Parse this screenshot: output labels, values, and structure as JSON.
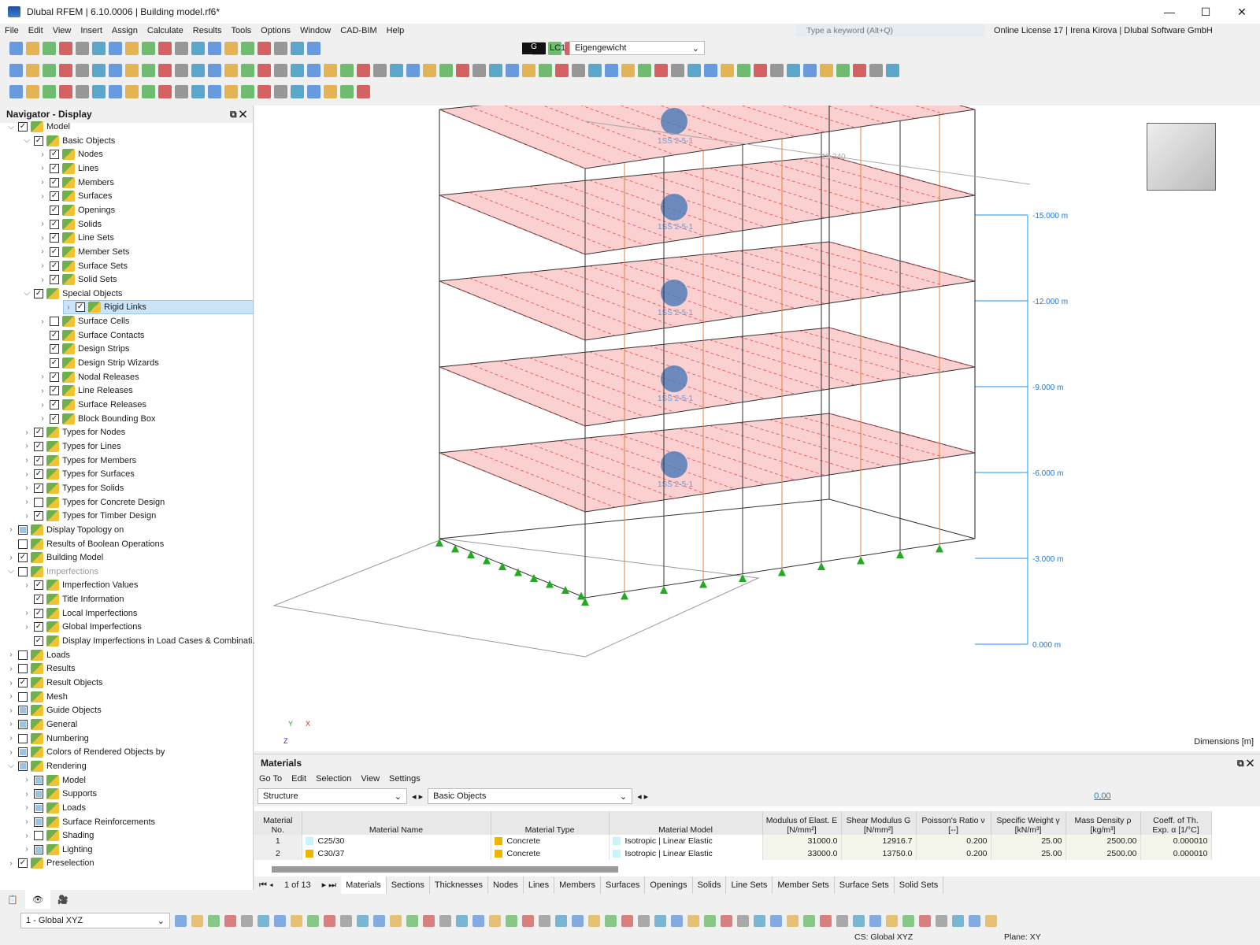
{
  "window": {
    "title": "Dlubal RFEM | 6.10.0006 | Building model.rf6*",
    "minimize": "—",
    "maximize": "☐",
    "close": "✕"
  },
  "menu": [
    "File",
    "Edit",
    "View",
    "Insert",
    "Assign",
    "Calculate",
    "Results",
    "Tools",
    "Options",
    "Window",
    "CAD-BIM",
    "Help"
  ],
  "search": {
    "placeholder": "Type a keyword (Alt+Q)"
  },
  "license": "Online License 17 | Irena Kirova | Dlubal Software GmbH",
  "loadcase": {
    "type": "G",
    "id": "LC1",
    "name": "Eigengewicht"
  },
  "navigator": {
    "title": "Navigator - Display",
    "items": [
      {
        "l": 0,
        "t": "Model",
        "a": "v",
        "c": "x"
      },
      {
        "l": 1,
        "t": "Basic Objects",
        "a": "v",
        "c": "x"
      },
      {
        "l": 2,
        "t": "Nodes",
        "a": ">",
        "c": "x"
      },
      {
        "l": 2,
        "t": "Lines",
        "a": ">",
        "c": "x"
      },
      {
        "l": 2,
        "t": "Members",
        "a": ">",
        "c": "x"
      },
      {
        "l": 2,
        "t": "Surfaces",
        "a": ">",
        "c": "x"
      },
      {
        "l": 2,
        "t": "Openings",
        "a": "",
        "c": "x"
      },
      {
        "l": 2,
        "t": "Solids",
        "a": ">",
        "c": "x"
      },
      {
        "l": 2,
        "t": "Line Sets",
        "a": ">",
        "c": "x"
      },
      {
        "l": 2,
        "t": "Member Sets",
        "a": ">",
        "c": "x"
      },
      {
        "l": 2,
        "t": "Surface Sets",
        "a": ">",
        "c": "x"
      },
      {
        "l": 2,
        "t": "Solid Sets",
        "a": ">",
        "c": "x"
      },
      {
        "l": 1,
        "t": "Special Objects",
        "a": "v",
        "c": "x"
      },
      {
        "l": 2,
        "t": "Rigid Links",
        "a": ">",
        "c": "x",
        "sel": true
      },
      {
        "l": 2,
        "t": "Surface Cells",
        "a": ">",
        "c": ""
      },
      {
        "l": 2,
        "t": "Surface Contacts",
        "a": "",
        "c": "x"
      },
      {
        "l": 2,
        "t": "Design Strips",
        "a": "",
        "c": "x"
      },
      {
        "l": 2,
        "t": "Design Strip Wizards",
        "a": "",
        "c": "x"
      },
      {
        "l": 2,
        "t": "Nodal Releases",
        "a": ">",
        "c": "x"
      },
      {
        "l": 2,
        "t": "Line Releases",
        "a": ">",
        "c": "x"
      },
      {
        "l": 2,
        "t": "Surface Releases",
        "a": ">",
        "c": "x"
      },
      {
        "l": 2,
        "t": "Block Bounding Box",
        "a": ">",
        "c": "x"
      },
      {
        "l": 1,
        "t": "Types for Nodes",
        "a": ">",
        "c": "x"
      },
      {
        "l": 1,
        "t": "Types for Lines",
        "a": ">",
        "c": "x"
      },
      {
        "l": 1,
        "t": "Types for Members",
        "a": ">",
        "c": "x"
      },
      {
        "l": 1,
        "t": "Types for Surfaces",
        "a": ">",
        "c": "x"
      },
      {
        "l": 1,
        "t": "Types for Solids",
        "a": ">",
        "c": "x"
      },
      {
        "l": 1,
        "t": "Types for Concrete Design",
        "a": ">",
        "c": ""
      },
      {
        "l": 1,
        "t": "Types for Timber Design",
        "a": ">",
        "c": "x"
      },
      {
        "l": 0,
        "t": "Display Topology on",
        "a": ">",
        "c": "p"
      },
      {
        "l": 0,
        "t": "Results of Boolean Operations",
        "a": "",
        "c": ""
      },
      {
        "l": 0,
        "t": "Building Model",
        "a": ">",
        "c": "x"
      },
      {
        "l": 0,
        "t": "Imperfections",
        "a": "v",
        "c": "",
        "grey": true
      },
      {
        "l": 1,
        "t": "Imperfection Values",
        "a": ">",
        "c": "x"
      },
      {
        "l": 1,
        "t": "Title Information",
        "a": "",
        "c": "x"
      },
      {
        "l": 1,
        "t": "Local Imperfections",
        "a": ">",
        "c": "x"
      },
      {
        "l": 1,
        "t": "Global Imperfections",
        "a": ">",
        "c": "x"
      },
      {
        "l": 1,
        "t": "Display Imperfections in Load Cases & Combinati...",
        "a": "",
        "c": "x"
      },
      {
        "l": 0,
        "t": "Loads",
        "a": ">",
        "c": ""
      },
      {
        "l": 0,
        "t": "Results",
        "a": ">",
        "c": ""
      },
      {
        "l": 0,
        "t": "Result Objects",
        "a": ">",
        "c": "x"
      },
      {
        "l": 0,
        "t": "Mesh",
        "a": ">",
        "c": ""
      },
      {
        "l": 0,
        "t": "Guide Objects",
        "a": ">",
        "c": "p"
      },
      {
        "l": 0,
        "t": "General",
        "a": ">",
        "c": "p"
      },
      {
        "l": 0,
        "t": "Numbering",
        "a": ">",
        "c": ""
      },
      {
        "l": 0,
        "t": "Colors of Rendered Objects by",
        "a": ">",
        "c": "p"
      },
      {
        "l": 0,
        "t": "Rendering",
        "a": "v",
        "c": "p"
      },
      {
        "l": 1,
        "t": "Model",
        "a": ">",
        "c": "p"
      },
      {
        "l": 1,
        "t": "Supports",
        "a": ">",
        "c": "p"
      },
      {
        "l": 1,
        "t": "Loads",
        "a": ">",
        "c": "p"
      },
      {
        "l": 1,
        "t": "Surface Reinforcements",
        "a": ">",
        "c": "p"
      },
      {
        "l": 1,
        "t": "Shading",
        "a": ">",
        "c": ""
      },
      {
        "l": 1,
        "t": "Lighting",
        "a": ">",
        "c": "p"
      },
      {
        "l": 0,
        "t": "Preselection",
        "a": ">",
        "c": "x"
      }
    ]
  },
  "viewport": {
    "dimension": "15.240",
    "levels": [
      "-15.000 m",
      "-12.000 m",
      "-9.000 m",
      "-6.000 m",
      "-3.000 m",
      "0.000 m"
    ],
    "units_label": "Dimensions [m]",
    "axes": {
      "x": "X",
      "y": "Y",
      "z": "Z"
    },
    "section_label": "1SS 2-5-1",
    "colors": {
      "load": "#e84b4b",
      "support": "#22aa22",
      "level": "#1e90ff"
    }
  },
  "materials": {
    "title": "Materials",
    "menu": [
      "Go To",
      "Edit",
      "Selection",
      "View",
      "Settings"
    ],
    "filter1": "Structure",
    "filter2": "Basic Objects",
    "decimals": "0,00",
    "columns": [
      "Material No.",
      "Material Name",
      "Material Type",
      "Material Model",
      "Modulus of Elast. E [N/mm²]",
      "Shear Modulus G [N/mm²]",
      "Poisson's Ratio ν [--]",
      "Specific Weight γ [kN/m³]",
      "Mass Density ρ [kg/m³]",
      "Coeff. of Th. Exp. α [1/°C]"
    ],
    "rows": [
      {
        "no": "1",
        "name": "C25/30",
        "name_color": "#c8f4f8",
        "type": "Concrete",
        "type_color": "#f0b400",
        "model": "Isotropic | Linear Elastic",
        "E": "31000.0",
        "G": "12916.7",
        "nu": "0.200",
        "gamma": "25.00",
        "rho": "2500.00",
        "alpha": "0.000010"
      },
      {
        "no": "2",
        "name": "C30/37",
        "name_color": "#f0b400",
        "type": "Concrete",
        "type_color": "#f0b400",
        "model": "Isotropic | Linear Elastic",
        "E": "33000.0",
        "G": "13750.0",
        "nu": "0.200",
        "gamma": "25.00",
        "rho": "2500.00",
        "alpha": "0.000010"
      }
    ],
    "pager": "1 of 13",
    "tabs": [
      "Materials",
      "Sections",
      "Thicknesses",
      "Nodes",
      "Lines",
      "Members",
      "Surfaces",
      "Openings",
      "Solids",
      "Line Sets",
      "Member Sets",
      "Surface Sets",
      "Solid Sets"
    ],
    "active_tab": "Materials"
  },
  "bottom": {
    "cs_select": "1 - Global XYZ",
    "cs": "CS: Global XYZ",
    "plane": "Plane: XY"
  }
}
